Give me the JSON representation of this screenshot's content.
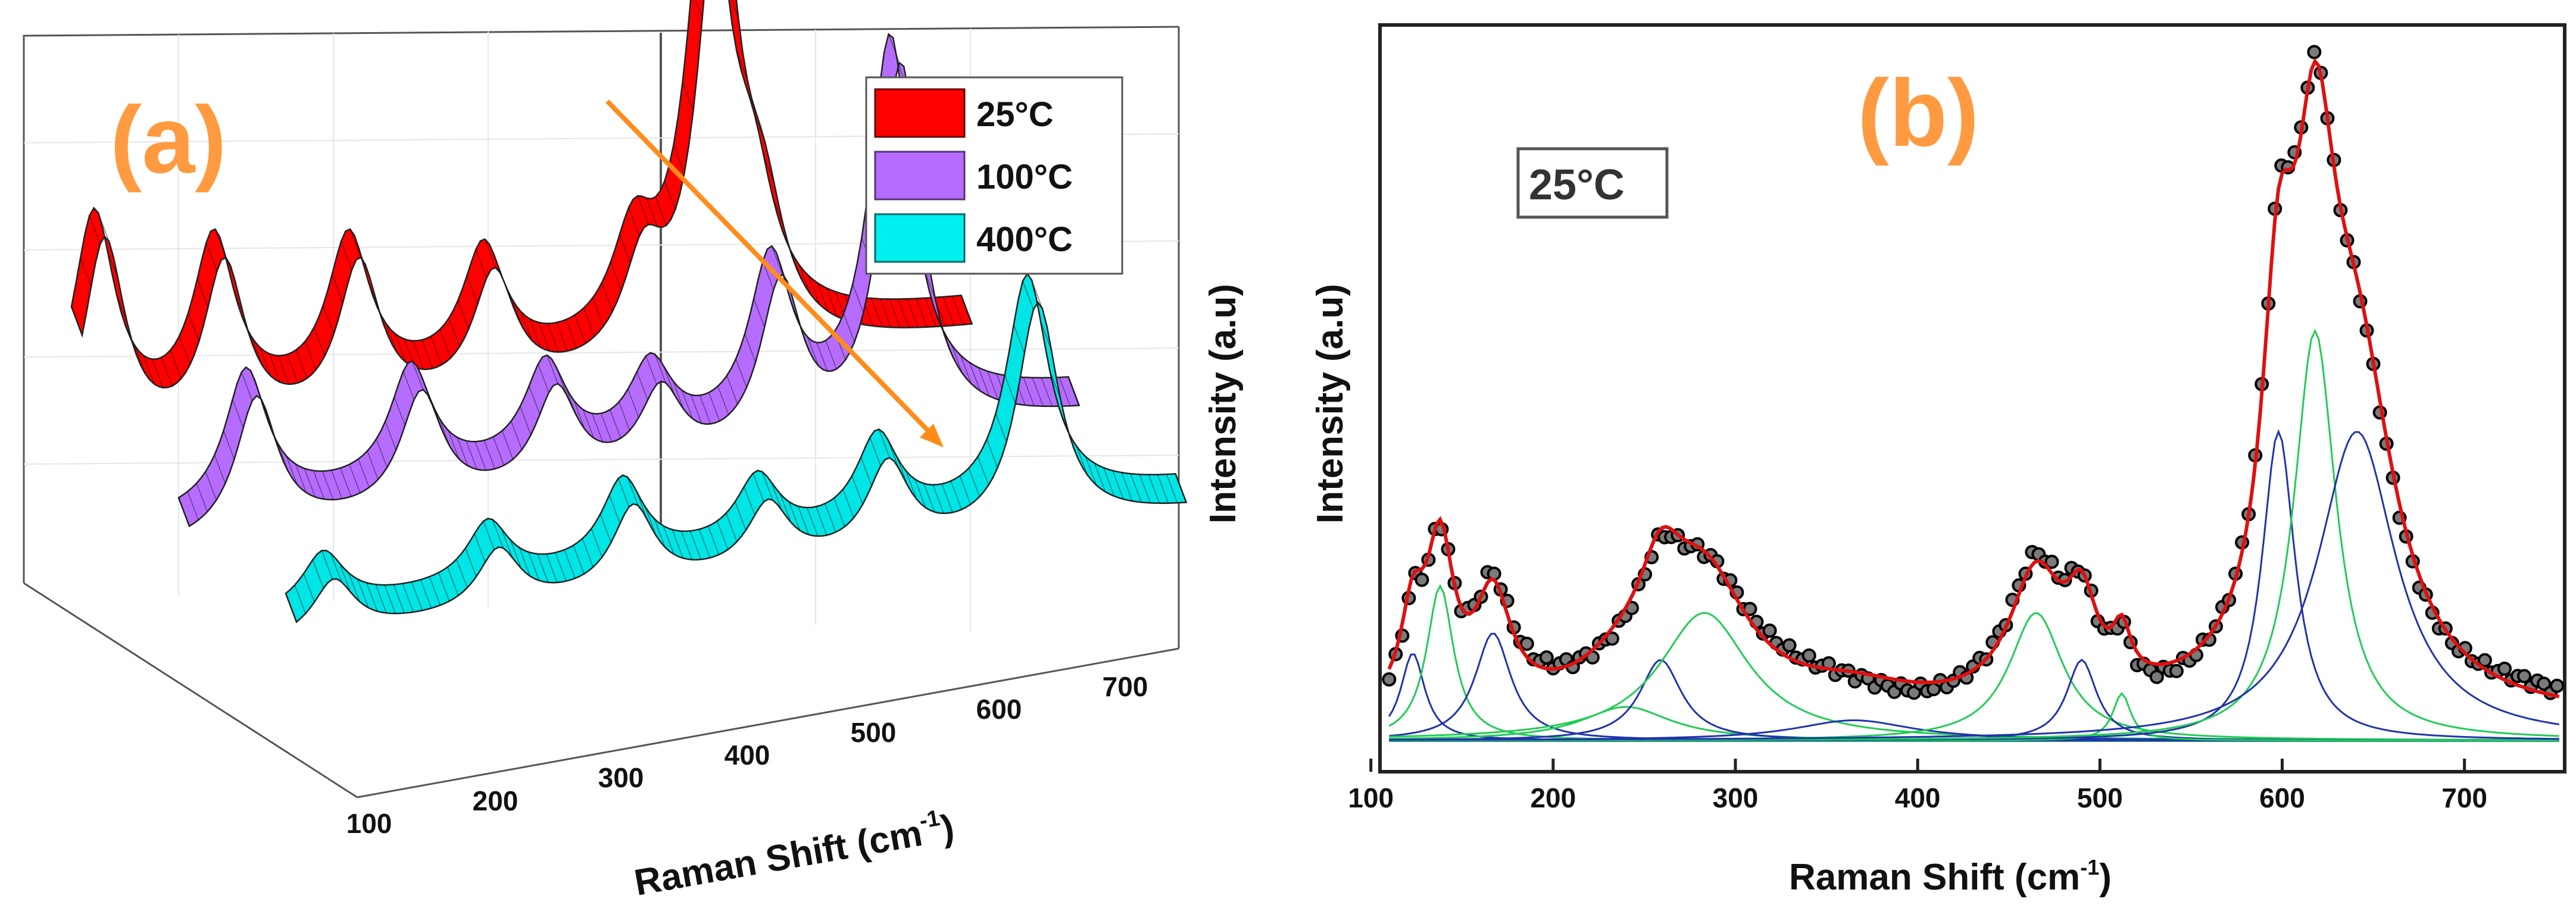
{
  "chart_data": [
    {
      "panel": "(a)",
      "type": "line",
      "style": "3d-waterfall-ribbon",
      "xlabel": "Raman Shift (cm",
      "xlabel_sup": "-1",
      "xlabel_close": ")",
      "ylabel": "Intensity (a.u)",
      "x_ticks": [
        "100",
        "200",
        "300",
        "400",
        "500",
        "600",
        "700"
      ],
      "xlim": [
        100,
        720
      ],
      "legend_position": "top-right",
      "annotation": "arrow connecting peak maxima, indicating intensity decrease with temperature",
      "series": [
        {
          "name": "25°C",
          "color": "#ff0000",
          "peaks": [
            {
              "x": 120,
              "y": 0.47
            },
            {
              "x": 200,
              "y": 0.37
            },
            {
              "x": 290,
              "y": 0.33
            },
            {
              "x": 380,
              "y": 0.26
            },
            {
              "x": 480,
              "y": 0.21
            },
            {
              "x": 530,
              "y": 1.0
            },
            {
              "x": 560,
              "y": 0.24
            }
          ]
        },
        {
          "name": "100°C",
          "color": "#b66cff",
          "peaks": [
            {
              "x": 150,
              "y": 0.3
            },
            {
              "x": 260,
              "y": 0.25
            },
            {
              "x": 350,
              "y": 0.21
            },
            {
              "x": 420,
              "y": 0.17
            },
            {
              "x": 500,
              "y": 0.36
            },
            {
              "x": 580,
              "y": 0.82
            }
          ]
        },
        {
          "name": "400°C",
          "color": "#00e5e5",
          "peaks": [
            {
              "x": 130,
              "y": 0.12
            },
            {
              "x": 240,
              "y": 0.13
            },
            {
              "x": 330,
              "y": 0.18
            },
            {
              "x": 420,
              "y": 0.14
            },
            {
              "x": 500,
              "y": 0.19
            },
            {
              "x": 600,
              "y": 0.5
            }
          ]
        }
      ]
    },
    {
      "panel": "(b)",
      "type": "line",
      "subtitle": "25°C",
      "xlabel": "Raman Shift (cm",
      "xlabel_sup": "-1",
      "xlabel_close": ")",
      "ylabel": "Intensity (a.u)",
      "x_ticks": [
        100,
        200,
        300,
        400,
        500,
        600,
        700
      ],
      "xlim": [
        105,
        755
      ],
      "ylim": [
        0,
        1.05
      ],
      "colors": {
        "fit": "#dd1111",
        "experimental": "#111111",
        "green": "#22cc55",
        "blue": "#2233aa",
        "baseline": "#118888"
      },
      "baseline": 0.02,
      "components": [
        {
          "group": "blue",
          "center": 123,
          "height": 0.13,
          "width": 8
        },
        {
          "group": "green",
          "center": 138,
          "height": 0.23,
          "width": 9
        },
        {
          "group": "blue",
          "center": 167,
          "height": 0.16,
          "width": 12
        },
        {
          "group": "green",
          "center": 240,
          "height": 0.05,
          "width": 30
        },
        {
          "group": "blue",
          "center": 259,
          "height": 0.12,
          "width": 14
        },
        {
          "group": "green",
          "center": 283,
          "height": 0.19,
          "width": 30
        },
        {
          "group": "blue",
          "center": 365,
          "height": 0.03,
          "width": 40
        },
        {
          "group": "green",
          "center": 465,
          "height": 0.19,
          "width": 18
        },
        {
          "group": "blue",
          "center": 490,
          "height": 0.12,
          "width": 10
        },
        {
          "group": "green",
          "center": 512,
          "height": 0.07,
          "width": 6
        },
        {
          "group": "blue",
          "center": 598,
          "height": 0.46,
          "width": 11
        },
        {
          "group": "green",
          "center": 618,
          "height": 0.61,
          "width": 14
        },
        {
          "group": "blue",
          "center": 641,
          "height": 0.46,
          "width": 26
        }
      ]
    }
  ]
}
